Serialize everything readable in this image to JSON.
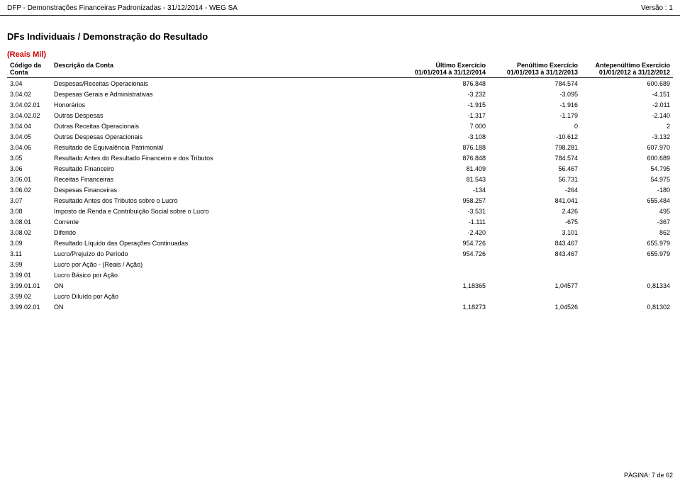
{
  "header": {
    "left": "DFP - Demonstrações Financeiras Padronizadas - 31/12/2014 - WEG SA",
    "right": "Versão : 1"
  },
  "section_title": "DFs Individuais / Demonstração do Resultado",
  "unit_label": "(Reais Mil)",
  "columns": {
    "code_l1": "Código da",
    "code_l2": "Conta",
    "desc": "Descrição da Conta",
    "p1_l1": "Último Exercício",
    "p1_l2": "01/01/2014 à 31/12/2014",
    "p2_l1": "Penúltimo Exercício",
    "p2_l2": "01/01/2013 à 31/12/2013",
    "p3_l1": "Antepenúltimo Exercício",
    "p3_l2": "01/01/2012 à 31/12/2012"
  },
  "rows": [
    {
      "code": "3.04",
      "desc": "Despesas/Receitas Operacionais",
      "v1": "876.848",
      "v2": "784.574",
      "v3": "600.689"
    },
    {
      "code": "3.04.02",
      "desc": "Despesas Gerais e Administrativas",
      "v1": "-3.232",
      "v2": "-3.095",
      "v3": "-4.151"
    },
    {
      "code": "3.04.02.01",
      "desc": "Honorários",
      "v1": "-1.915",
      "v2": "-1.916",
      "v3": "-2.011"
    },
    {
      "code": "3.04.02.02",
      "desc": "Outras Despesas",
      "v1": "-1.317",
      "v2": "-1.179",
      "v3": "-2.140"
    },
    {
      "code": "3.04.04",
      "desc": "Outras Receitas Operacionais",
      "v1": "7.000",
      "v2": "0",
      "v3": "2"
    },
    {
      "code": "3.04.05",
      "desc": "Outras Despesas Operacionais",
      "v1": "-3.108",
      "v2": "-10.612",
      "v3": "-3.132"
    },
    {
      "code": "3.04.06",
      "desc": "Resultado de Equivalência Patrimonial",
      "v1": "876.188",
      "v2": "798.281",
      "v3": "607.970"
    },
    {
      "code": "3.05",
      "desc": "Resultado Antes do Resultado Financeiro e dos Tributos",
      "v1": "876.848",
      "v2": "784.574",
      "v3": "600.689"
    },
    {
      "code": "3.06",
      "desc": "Resultado Financeiro",
      "v1": "81.409",
      "v2": "56.467",
      "v3": "54.795"
    },
    {
      "code": "3.06.01",
      "desc": "Receitas Financeiras",
      "v1": "81.543",
      "v2": "56.731",
      "v3": "54.975"
    },
    {
      "code": "3.06.02",
      "desc": "Despesas Financeiras",
      "v1": "-134",
      "v2": "-264",
      "v3": "-180"
    },
    {
      "code": "3.07",
      "desc": "Resultado Antes dos Tributos sobre o Lucro",
      "v1": "958.257",
      "v2": "841.041",
      "v3": "655.484"
    },
    {
      "code": "3.08",
      "desc": "Imposto de Renda e Contribuição Social sobre o Lucro",
      "v1": "-3.531",
      "v2": "2.426",
      "v3": "495"
    },
    {
      "code": "3.08.01",
      "desc": "Corrente",
      "v1": "-1.111",
      "v2": "-675",
      "v3": "-367"
    },
    {
      "code": "3.08.02",
      "desc": "Diferido",
      "v1": "-2.420",
      "v2": "3.101",
      "v3": "862"
    },
    {
      "code": "3.09",
      "desc": "Resultado Líquido das Operações Continuadas",
      "v1": "954.726",
      "v2": "843.467",
      "v3": "655.979"
    },
    {
      "code": "3.11",
      "desc": "Lucro/Prejuízo do Período",
      "v1": "954.726",
      "v2": "843.467",
      "v3": "655.979"
    },
    {
      "code": "3.99",
      "desc": "Lucro por Ação - (Reais / Ação)",
      "v1": "",
      "v2": "",
      "v3": ""
    },
    {
      "code": "3.99.01",
      "desc": "Lucro Básico por Ação",
      "v1": "",
      "v2": "",
      "v3": ""
    },
    {
      "code": "3.99.01.01",
      "desc": "ON",
      "v1": "1,18365",
      "v2": "1,04577",
      "v3": "0,81334"
    },
    {
      "code": "3.99.02",
      "desc": "Lucro Diluído por Ação",
      "v1": "",
      "v2": "",
      "v3": ""
    },
    {
      "code": "3.99.02.01",
      "desc": "ON",
      "v1": "1,18273",
      "v2": "1,04526",
      "v3": "0,81302"
    }
  ],
  "footer": "PÁGINA: 7 de 62"
}
